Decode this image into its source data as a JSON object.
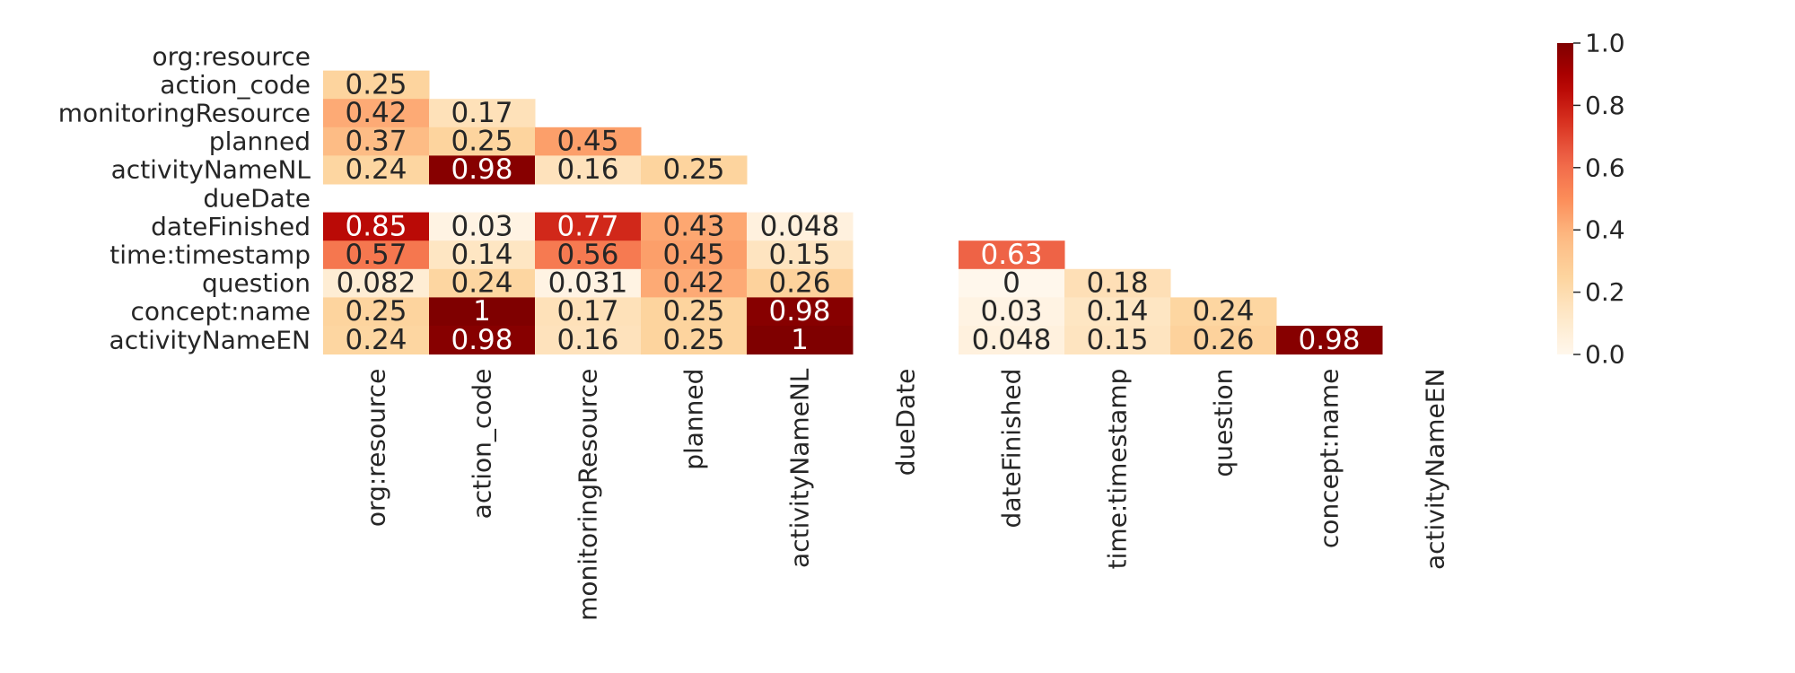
{
  "chart_data": {
    "type": "heatmap",
    "title": "",
    "xlabel": "",
    "ylabel": "",
    "colormap": "OrRd",
    "vmin": 0.0,
    "vmax": 1.0,
    "row_labels": [
      "org:resource",
      "action_code",
      "monitoringResource",
      "planned",
      "activityNameNL",
      "dueDate",
      "dateFinished",
      "time:timestamp",
      "question",
      "concept:name",
      "activityNameEN"
    ],
    "col_labels": [
      "org:resource",
      "action_code",
      "monitoringResource",
      "planned",
      "activityNameNL",
      "dueDate",
      "dateFinished",
      "time:timestamp",
      "question",
      "concept:name",
      "activityNameEN"
    ],
    "cells": [
      {
        "row": "action_code",
        "col": "org:resource",
        "value": 0.25,
        "label": "0.25"
      },
      {
        "row": "monitoringResource",
        "col": "org:resource",
        "value": 0.42,
        "label": "0.42"
      },
      {
        "row": "monitoringResource",
        "col": "action_code",
        "value": 0.17,
        "label": "0.17"
      },
      {
        "row": "planned",
        "col": "org:resource",
        "value": 0.37,
        "label": "0.37"
      },
      {
        "row": "planned",
        "col": "action_code",
        "value": 0.25,
        "label": "0.25"
      },
      {
        "row": "planned",
        "col": "monitoringResource",
        "value": 0.45,
        "label": "0.45"
      },
      {
        "row": "activityNameNL",
        "col": "org:resource",
        "value": 0.24,
        "label": "0.24"
      },
      {
        "row": "activityNameNL",
        "col": "action_code",
        "value": 0.98,
        "label": "0.98"
      },
      {
        "row": "activityNameNL",
        "col": "monitoringResource",
        "value": 0.16,
        "label": "0.16"
      },
      {
        "row": "activityNameNL",
        "col": "planned",
        "value": 0.25,
        "label": "0.25"
      },
      {
        "row": "dateFinished",
        "col": "org:resource",
        "value": 0.85,
        "label": "0.85"
      },
      {
        "row": "dateFinished",
        "col": "action_code",
        "value": 0.03,
        "label": "0.03"
      },
      {
        "row": "dateFinished",
        "col": "monitoringResource",
        "value": 0.77,
        "label": "0.77"
      },
      {
        "row": "dateFinished",
        "col": "planned",
        "value": 0.43,
        "label": "0.43"
      },
      {
        "row": "dateFinished",
        "col": "activityNameNL",
        "value": 0.048,
        "label": "0.048"
      },
      {
        "row": "time:timestamp",
        "col": "org:resource",
        "value": 0.57,
        "label": "0.57"
      },
      {
        "row": "time:timestamp",
        "col": "action_code",
        "value": 0.14,
        "label": "0.14"
      },
      {
        "row": "time:timestamp",
        "col": "monitoringResource",
        "value": 0.56,
        "label": "0.56"
      },
      {
        "row": "time:timestamp",
        "col": "planned",
        "value": 0.45,
        "label": "0.45"
      },
      {
        "row": "time:timestamp",
        "col": "activityNameNL",
        "value": 0.15,
        "label": "0.15"
      },
      {
        "row": "time:timestamp",
        "col": "dateFinished",
        "value": 0.63,
        "label": "0.63"
      },
      {
        "row": "question",
        "col": "org:resource",
        "value": 0.082,
        "label": "0.082"
      },
      {
        "row": "question",
        "col": "action_code",
        "value": 0.24,
        "label": "0.24"
      },
      {
        "row": "question",
        "col": "monitoringResource",
        "value": 0.031,
        "label": "0.031"
      },
      {
        "row": "question",
        "col": "planned",
        "value": 0.42,
        "label": "0.42"
      },
      {
        "row": "question",
        "col": "activityNameNL",
        "value": 0.26,
        "label": "0.26"
      },
      {
        "row": "question",
        "col": "dateFinished",
        "value": 0,
        "label": "0"
      },
      {
        "row": "question",
        "col": "time:timestamp",
        "value": 0.18,
        "label": "0.18"
      },
      {
        "row": "concept:name",
        "col": "org:resource",
        "value": 0.25,
        "label": "0.25"
      },
      {
        "row": "concept:name",
        "col": "action_code",
        "value": 1,
        "label": "1"
      },
      {
        "row": "concept:name",
        "col": "monitoringResource",
        "value": 0.17,
        "label": "0.17"
      },
      {
        "row": "concept:name",
        "col": "planned",
        "value": 0.25,
        "label": "0.25"
      },
      {
        "row": "concept:name",
        "col": "activityNameNL",
        "value": 0.98,
        "label": "0.98"
      },
      {
        "row": "concept:name",
        "col": "dateFinished",
        "value": 0.03,
        "label": "0.03"
      },
      {
        "row": "concept:name",
        "col": "time:timestamp",
        "value": 0.14,
        "label": "0.14"
      },
      {
        "row": "concept:name",
        "col": "question",
        "value": 0.24,
        "label": "0.24"
      },
      {
        "row": "activityNameEN",
        "col": "org:resource",
        "value": 0.24,
        "label": "0.24"
      },
      {
        "row": "activityNameEN",
        "col": "action_code",
        "value": 0.98,
        "label": "0.98"
      },
      {
        "row": "activityNameEN",
        "col": "monitoringResource",
        "value": 0.16,
        "label": "0.16"
      },
      {
        "row": "activityNameEN",
        "col": "planned",
        "value": 0.25,
        "label": "0.25"
      },
      {
        "row": "activityNameEN",
        "col": "activityNameNL",
        "value": 1,
        "label": "1"
      },
      {
        "row": "activityNameEN",
        "col": "dateFinished",
        "value": 0.048,
        "label": "0.048"
      },
      {
        "row": "activityNameEN",
        "col": "time:timestamp",
        "value": 0.15,
        "label": "0.15"
      },
      {
        "row": "activityNameEN",
        "col": "question",
        "value": 0.26,
        "label": "0.26"
      },
      {
        "row": "activityNameEN",
        "col": "concept:name",
        "value": 0.98,
        "label": "0.98"
      }
    ],
    "colorbar": {
      "ticks": [
        0.0,
        0.2,
        0.4,
        0.6,
        0.8,
        1.0
      ],
      "tick_labels": [
        "0.0",
        "0.2",
        "0.4",
        "0.6",
        "0.8",
        "1.0"
      ]
    }
  }
}
